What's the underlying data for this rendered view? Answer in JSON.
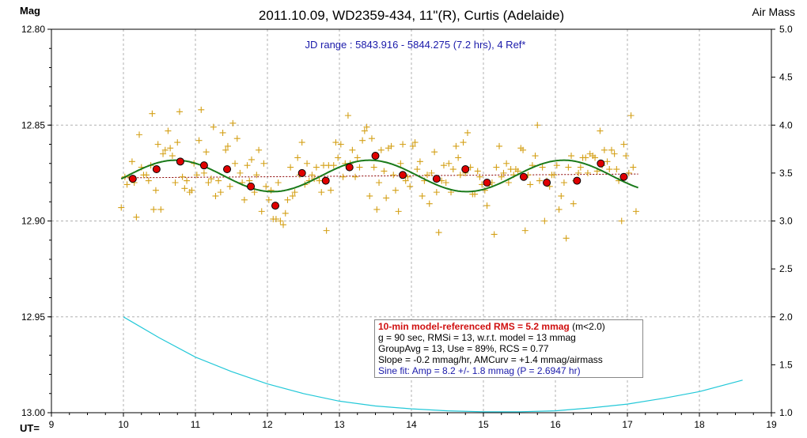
{
  "chart_data": {
    "type": "scatter",
    "title": "2011.10.09, WD2359-434, 11\"(R), Curtis (Adelaide)",
    "ylabel_left": "Mag",
    "ylabel_right": "Air Mass",
    "xlabel": "UT=",
    "subtitle": "JD range : 5843.916 - 5844.275 (7.2 hrs), 4 Ref*",
    "xlim": [
      9,
      19
    ],
    "ylim_left": [
      12.8,
      13.0
    ],
    "ylim_left_inverted": true,
    "ylim_right": [
      1.0,
      5.0
    ],
    "grid": true,
    "x_ticks": [
      "9",
      "10",
      "11",
      "12",
      "13",
      "14",
      "15",
      "16",
      "17",
      "18",
      "19"
    ],
    "y_ticks_left": [
      "12.80",
      "12.85",
      "12.90",
      "12.95",
      "13.00"
    ],
    "y_ticks_right": [
      "5.0",
      "4.5",
      "4.0",
      "3.5",
      "3.0",
      "2.5",
      "2.0",
      "1.5",
      "1.0"
    ],
    "colors": {
      "raw": "#d4a017",
      "binned": "#e00000",
      "sine": "#1a7a1a",
      "model_line": "#8b0000",
      "airmass": "#22c8d8"
    },
    "series": [
      {
        "name": "raw",
        "marker": "plus",
        "points": [
          [
            9.97,
            12.893
          ],
          [
            10.02,
            12.877
          ],
          [
            10.05,
            12.881
          ],
          [
            10.08,
            12.877
          ],
          [
            10.12,
            12.869
          ],
          [
            10.15,
            12.88
          ],
          [
            10.18,
            12.898
          ],
          [
            10.22,
            12.855
          ],
          [
            10.25,
            12.872
          ],
          [
            10.28,
            12.876
          ],
          [
            10.32,
            12.876
          ],
          [
            10.35,
            12.879
          ],
          [
            10.38,
            12.871
          ],
          [
            10.4,
            12.844
          ],
          [
            10.42,
            12.894
          ],
          [
            10.45,
            12.884
          ],
          [
            10.48,
            12.86
          ],
          [
            10.52,
            12.894
          ],
          [
            10.55,
            12.865
          ],
          [
            10.58,
            12.863
          ],
          [
            10.62,
            12.853
          ],
          [
            10.65,
            12.862
          ],
          [
            10.68,
            12.866
          ],
          [
            10.72,
            12.88
          ],
          [
            10.75,
            12.859
          ],
          [
            10.78,
            12.843
          ],
          [
            10.82,
            12.877
          ],
          [
            10.85,
            12.883
          ],
          [
            10.88,
            12.879
          ],
          [
            10.92,
            12.885
          ],
          [
            10.95,
            12.884
          ],
          [
            10.98,
            12.87
          ],
          [
            11.02,
            12.876
          ],
          [
            11.05,
            12.858
          ],
          [
            11.08,
            12.842
          ],
          [
            11.12,
            12.875
          ],
          [
            11.15,
            12.864
          ],
          [
            11.18,
            12.88
          ],
          [
            11.22,
            12.878
          ],
          [
            11.25,
            12.851
          ],
          [
            11.28,
            12.887
          ],
          [
            11.32,
            12.879
          ],
          [
            11.35,
            12.885
          ],
          [
            11.38,
            12.854
          ],
          [
            11.42,
            12.863
          ],
          [
            11.45,
            12.861
          ],
          [
            11.48,
            12.882
          ],
          [
            11.52,
            12.849
          ],
          [
            11.55,
            12.87
          ],
          [
            11.58,
            12.857
          ],
          [
            11.62,
            12.875
          ],
          [
            11.65,
            12.88
          ],
          [
            11.68,
            12.889
          ],
          [
            11.72,
            12.871
          ],
          [
            11.75,
            12.879
          ],
          [
            11.78,
            12.868
          ],
          [
            11.82,
            12.885
          ],
          [
            11.85,
            12.876
          ],
          [
            11.88,
            12.863
          ],
          [
            11.92,
            12.895
          ],
          [
            11.95,
            12.87
          ],
          [
            11.98,
            12.882
          ],
          [
            12.02,
            12.889
          ],
          [
            12.05,
            12.884
          ],
          [
            12.08,
            12.899
          ],
          [
            12.12,
            12.899
          ],
          [
            12.15,
            12.88
          ],
          [
            12.18,
            12.9
          ],
          [
            12.22,
            12.902
          ],
          [
            12.25,
            12.896
          ],
          [
            12.28,
            12.889
          ],
          [
            12.32,
            12.872
          ],
          [
            12.35,
            12.887
          ],
          [
            12.38,
            12.885
          ],
          [
            12.42,
            12.867
          ],
          [
            12.45,
            12.876
          ],
          [
            12.48,
            12.859
          ],
          [
            12.52,
            12.881
          ],
          [
            12.55,
            12.87
          ],
          [
            12.58,
            12.879
          ],
          [
            12.62,
            12.876
          ],
          [
            12.65,
            12.878
          ],
          [
            12.68,
            12.872
          ],
          [
            12.72,
            12.879
          ],
          [
            12.75,
            12.885
          ],
          [
            12.78,
            12.871
          ],
          [
            12.82,
            12.905
          ],
          [
            12.85,
            12.871
          ],
          [
            12.88,
            12.884
          ],
          [
            12.92,
            12.871
          ],
          [
            12.95,
            12.859
          ],
          [
            12.98,
            12.867
          ],
          [
            13.02,
            12.86
          ],
          [
            13.05,
            12.877
          ],
          [
            13.08,
            12.87
          ],
          [
            13.12,
            12.845
          ],
          [
            13.15,
            12.87
          ],
          [
            13.18,
            12.863
          ],
          [
            13.22,
            12.877
          ],
          [
            13.25,
            12.867
          ],
          [
            13.28,
            12.872
          ],
          [
            13.32,
            12.858
          ],
          [
            13.35,
            12.853
          ],
          [
            13.38,
            12.851
          ],
          [
            13.42,
            12.887
          ],
          [
            13.45,
            12.857
          ],
          [
            13.48,
            12.872
          ],
          [
            13.52,
            12.894
          ],
          [
            13.55,
            12.88
          ],
          [
            13.58,
            12.863
          ],
          [
            13.62,
            12.874
          ],
          [
            13.65,
            12.888
          ],
          [
            13.68,
            12.862
          ],
          [
            13.72,
            12.861
          ],
          [
            13.75,
            12.876
          ],
          [
            13.78,
            12.884
          ],
          [
            13.82,
            12.895
          ],
          [
            13.85,
            12.87
          ],
          [
            13.88,
            12.86
          ],
          [
            13.92,
            12.879
          ],
          [
            13.95,
            12.877
          ],
          [
            13.98,
            12.882
          ],
          [
            14.02,
            12.861
          ],
          [
            14.05,
            12.859
          ],
          [
            14.08,
            12.873
          ],
          [
            14.12,
            12.869
          ],
          [
            14.15,
            12.887
          ],
          [
            14.18,
            12.879
          ],
          [
            14.22,
            12.876
          ],
          [
            14.25,
            12.891
          ],
          [
            14.28,
            12.875
          ],
          [
            14.32,
            12.864
          ],
          [
            14.35,
            12.885
          ],
          [
            14.38,
            12.906
          ],
          [
            14.42,
            12.879
          ],
          [
            14.45,
            12.871
          ],
          [
            14.48,
            12.88
          ],
          [
            14.52,
            12.87
          ],
          [
            14.55,
            12.885
          ],
          [
            14.58,
            12.873
          ],
          [
            14.62,
            12.861
          ],
          [
            14.65,
            12.867
          ],
          [
            14.68,
            12.876
          ],
          [
            14.72,
            12.859
          ],
          [
            14.75,
            12.875
          ],
          [
            14.78,
            12.854
          ],
          [
            14.82,
            12.872
          ],
          [
            14.85,
            12.886
          ],
          [
            14.88,
            12.886
          ],
          [
            14.92,
            12.874
          ],
          [
            14.95,
            12.877
          ],
          [
            14.98,
            12.881
          ],
          [
            15.02,
            12.884
          ],
          [
            15.05,
            12.892
          ],
          [
            15.08,
            12.881
          ],
          [
            15.12,
            12.88
          ],
          [
            15.15,
            12.907
          ],
          [
            15.18,
            12.872
          ],
          [
            15.22,
            12.861
          ],
          [
            15.25,
            12.877
          ],
          [
            15.28,
            12.875
          ],
          [
            15.32,
            12.87
          ],
          [
            15.35,
            12.88
          ],
          [
            15.38,
            12.873
          ],
          [
            15.42,
            12.876
          ],
          [
            15.45,
            12.873
          ],
          [
            15.48,
            12.874
          ],
          [
            15.52,
            12.862
          ],
          [
            15.55,
            12.863
          ],
          [
            15.58,
            12.905
          ],
          [
            15.62,
            12.876
          ],
          [
            15.65,
            12.881
          ],
          [
            15.68,
            12.871
          ],
          [
            15.72,
            12.866
          ],
          [
            15.75,
            12.85
          ],
          [
            15.78,
            12.879
          ],
          [
            15.82,
            12.872
          ],
          [
            15.85,
            12.9
          ],
          [
            15.88,
            12.879
          ],
          [
            15.92,
            12.882
          ],
          [
            15.95,
            12.876
          ],
          [
            15.98,
            12.876
          ],
          [
            16.02,
            12.871
          ],
          [
            16.05,
            12.894
          ],
          [
            16.08,
            12.887
          ],
          [
            16.12,
            12.88
          ],
          [
            16.15,
            12.909
          ],
          [
            16.18,
            12.872
          ],
          [
            16.22,
            12.866
          ],
          [
            16.25,
            12.891
          ],
          [
            16.28,
            12.879
          ],
          [
            16.32,
            12.875
          ],
          [
            16.35,
            12.872
          ],
          [
            16.38,
            12.867
          ],
          [
            16.42,
            12.867
          ],
          [
            16.45,
            12.875
          ],
          [
            16.48,
            12.865
          ],
          [
            16.52,
            12.866
          ],
          [
            16.55,
            12.867
          ],
          [
            16.58,
            12.874
          ],
          [
            16.62,
            12.853
          ],
          [
            16.65,
            12.871
          ],
          [
            16.68,
            12.863
          ],
          [
            16.72,
            12.869
          ],
          [
            16.75,
            12.873
          ],
          [
            16.78,
            12.863
          ],
          [
            16.82,
            12.865
          ],
          [
            16.85,
            12.873
          ],
          [
            16.88,
            12.879
          ],
          [
            16.92,
            12.9
          ],
          [
            16.95,
            12.86
          ],
          [
            16.98,
            12.866
          ],
          [
            17.02,
            12.875
          ],
          [
            17.05,
            12.845
          ],
          [
            17.08,
            12.872
          ],
          [
            17.12,
            12.895
          ]
        ]
      },
      {
        "name": "binned",
        "marker": "circle",
        "points": [
          [
            10.13,
            12.878
          ],
          [
            10.46,
            12.873
          ],
          [
            10.79,
            12.869
          ],
          [
            11.12,
            12.871
          ],
          [
            11.44,
            12.873
          ],
          [
            11.77,
            12.882
          ],
          [
            12.11,
            12.892
          ],
          [
            12.48,
            12.875
          ],
          [
            12.81,
            12.879
          ],
          [
            13.14,
            12.872
          ],
          [
            13.5,
            12.866
          ],
          [
            13.88,
            12.876
          ],
          [
            14.35,
            12.878
          ],
          [
            14.75,
            12.873
          ],
          [
            15.05,
            12.88
          ],
          [
            15.56,
            12.877
          ],
          [
            15.88,
            12.88
          ],
          [
            16.3,
            12.879
          ],
          [
            16.63,
            12.87
          ],
          [
            16.95,
            12.877
          ]
        ]
      }
    ],
    "sine_fit": {
      "offset": 12.8765,
      "amplitude": 0.0082,
      "period": 2.6947,
      "phase_hours": 0.755,
      "x_range": [
        9.97,
        17.15
      ]
    },
    "model_line": {
      "x": [
        9.97,
        17.15
      ],
      "y": [
        12.8775,
        12.8755
      ]
    },
    "airmass": {
      "x": [
        10.0,
        10.5,
        11.0,
        11.5,
        12.0,
        12.5,
        13.0,
        13.5,
        14.0,
        14.5,
        15.0,
        15.5,
        16.0,
        16.5,
        17.0,
        17.5,
        18.0,
        18.6
      ],
      "y": [
        2.0,
        1.78,
        1.58,
        1.43,
        1.3,
        1.2,
        1.12,
        1.07,
        1.04,
        1.02,
        1.01,
        1.01,
        1.02,
        1.05,
        1.09,
        1.15,
        1.22,
        1.34
      ]
    }
  },
  "info_box": {
    "line1_bold": "10-min model-referenced RMS = 5.2 mmag",
    "line1_rest": " (m<2.0)",
    "line2": "g = 90 sec, RMSi = 13, w.r.t. model = 13 mmag",
    "line3": "GroupAvg  = 13, Use = 89%, RCS = 0.77",
    "line4": "Slope = -0.2 mmag/hr, AMCurv  = +1.4 mmag/airmass",
    "line5": "Sine fit: Amp = 8.2 +/- 1.8 mmag (P = 2.6947  hr)"
  }
}
